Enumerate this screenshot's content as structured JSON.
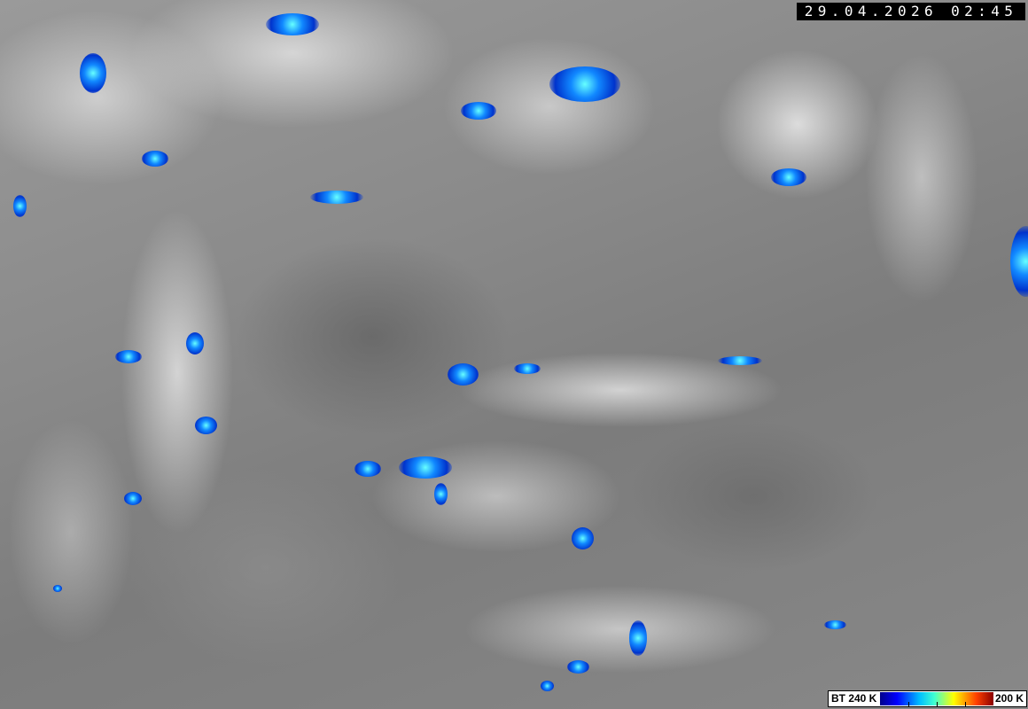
{
  "image": {
    "type": "infrared satellite image",
    "colors": {
      "background_gray": "#888888",
      "cold_cloud_blue": "#1a4cff"
    }
  },
  "timestamp": "29.04.2026 02:45",
  "legend": {
    "left_label": "BT 240 K",
    "right_label": "200 K",
    "colors": [
      "#00008b",
      "#0000ff",
      "#00bfff",
      "#40ffd0",
      "#ffff00",
      "#ff4000",
      "#8b0000"
    ]
  }
}
